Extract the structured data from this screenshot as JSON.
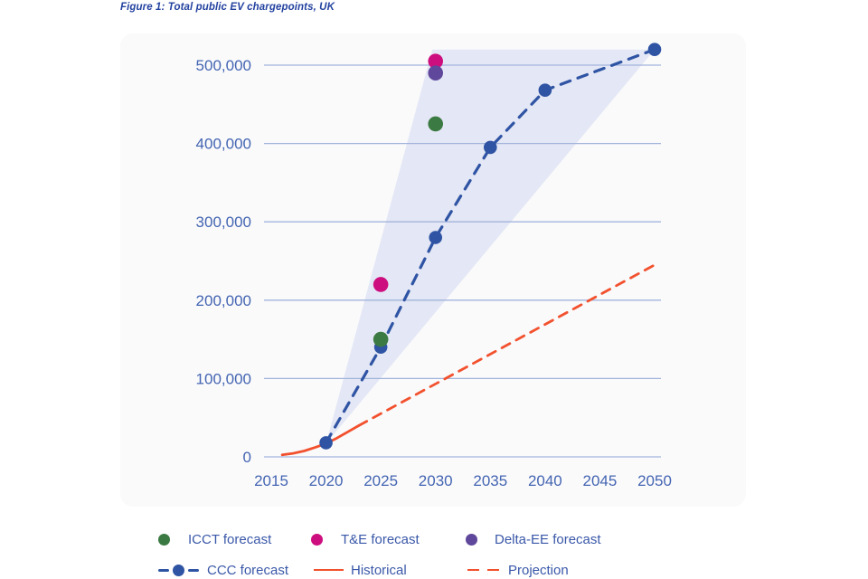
{
  "title": "Figure 1: Total public EV chargepoints, UK",
  "colors": {
    "title_blue": "#2443a0",
    "text_blue": "#3a58a9",
    "axis_label_blue": "#4465b2",
    "gridline_blue": "#a2b4dc",
    "panel_bg": "#fafafb",
    "fan_lavender": "#e4e7f5",
    "ccc_blue": "#2f54a4",
    "historical_orange": "#f2512e",
    "icct_green": "#3b7a42",
    "te_pink": "#cd0e7e",
    "deltaee_purple": "#5f479b"
  },
  "chart_data": {
    "type": "line",
    "title": "Figure 1: Total public EV chargepoints, UK",
    "xlabel": "",
    "ylabel": "",
    "xlim": [
      2013.8,
      2051
    ],
    "ylim": [
      0,
      540000
    ],
    "grid": "horizontal",
    "legend_position": "bottom",
    "x_ticks": [
      2015,
      2020,
      2025,
      2030,
      2035,
      2040,
      2045,
      2050
    ],
    "y_ticks": [
      0,
      100000,
      200000,
      300000,
      400000,
      500000
    ],
    "y_tick_labels": [
      "0",
      "100,000",
      "200,000",
      "300,000",
      "400,000",
      "500,000"
    ],
    "fan_range": {
      "name": "CCC forecast range",
      "vertices_year_value": [
        [
          2020,
          17000
        ],
        [
          2029.7,
          520000
        ],
        [
          2050,
          520000
        ]
      ]
    },
    "series": [
      {
        "name": "CCC forecast",
        "style": "dashed-line-with-markers",
        "color": "#2f54a4",
        "x": [
          2020,
          2025,
          2030,
          2035,
          2040,
          2050
        ],
        "values": [
          18000,
          140000,
          280000,
          395000,
          468000,
          520000
        ]
      },
      {
        "name": "Historical",
        "style": "solid-line",
        "color": "#f2512e",
        "x": [
          2016,
          2017,
          2018,
          2019,
          2020,
          2021,
          2022,
          2023
        ],
        "values": [
          2500,
          4500,
          7500,
          12000,
          17000,
          24000,
          32000,
          40000
        ]
      },
      {
        "name": "Projection",
        "style": "dashed-line",
        "color": "#f2512e",
        "x": [
          2023,
          2050
        ],
        "values": [
          40000,
          245000
        ]
      },
      {
        "name": "ICCT forecast",
        "style": "scatter",
        "color": "#3b7a42",
        "x": [
          2025,
          2030
        ],
        "values": [
          150000,
          425000
        ]
      },
      {
        "name": "T&E forecast",
        "style": "scatter",
        "color": "#cd0e7e",
        "x": [
          2025,
          2030
        ],
        "values": [
          220000,
          505000
        ]
      },
      {
        "name": "Delta-EE forecast",
        "style": "scatter",
        "color": "#5f479b",
        "x": [
          2030
        ],
        "values": [
          490000
        ]
      }
    ]
  },
  "legend": {
    "items": [
      {
        "label": "ICCT forecast"
      },
      {
        "label": "T&E forecast"
      },
      {
        "label": "Delta-EE forecast"
      },
      {
        "label": "CCC forecast"
      },
      {
        "label": "Historical"
      },
      {
        "label": "Projection"
      }
    ]
  }
}
